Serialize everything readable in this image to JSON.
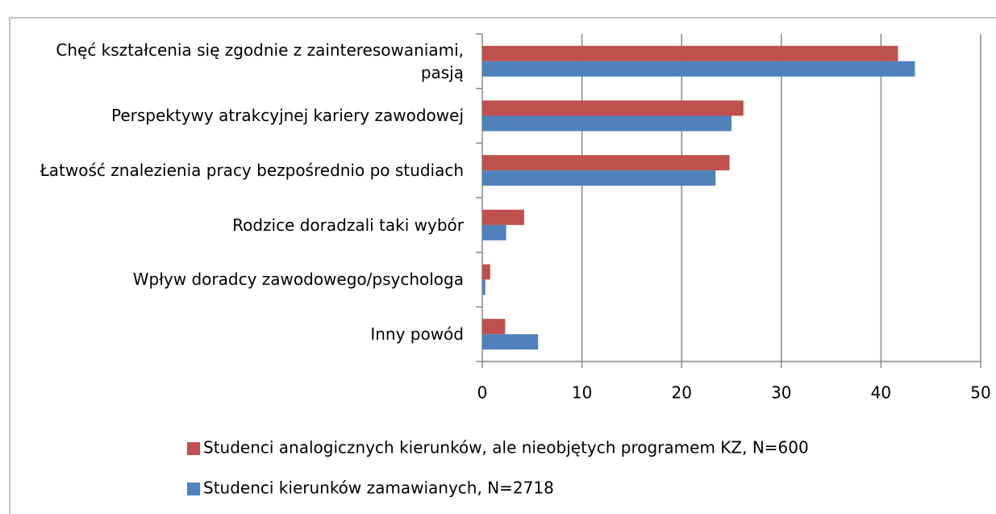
{
  "chart_data": {
    "type": "hbar",
    "categories": [
      "Chęć kształcenia się zgodnie z zainteresowaniami, pasją",
      "Perspektywy atrakcyjnej kariery zawodowej",
      "Łatwość znalezienia pracy bezpośrednio po studiach",
      "Rodzice doradzali taki wybór",
      "Wpływ doradcy zawodowego/psychologa",
      "Inny powód"
    ],
    "series": [
      {
        "name": "Studenci analogicznych kierunków, ale nieobjętych programem KZ, N=600",
        "color": "#c0504d",
        "values": [
          41.7,
          26.2,
          24.8,
          4.2,
          0.8,
          2.3
        ]
      },
      {
        "name": "Studenci kierunków zamawianych, N=2718",
        "color": "#4f81bd",
        "values": [
          43.4,
          25.0,
          23.4,
          2.4,
          0.3,
          5.6
        ]
      }
    ],
    "xlim": [
      0,
      50
    ],
    "xticks": [
      0,
      10,
      20,
      30,
      40,
      50
    ],
    "grid": true,
    "legend": "bottom"
  }
}
